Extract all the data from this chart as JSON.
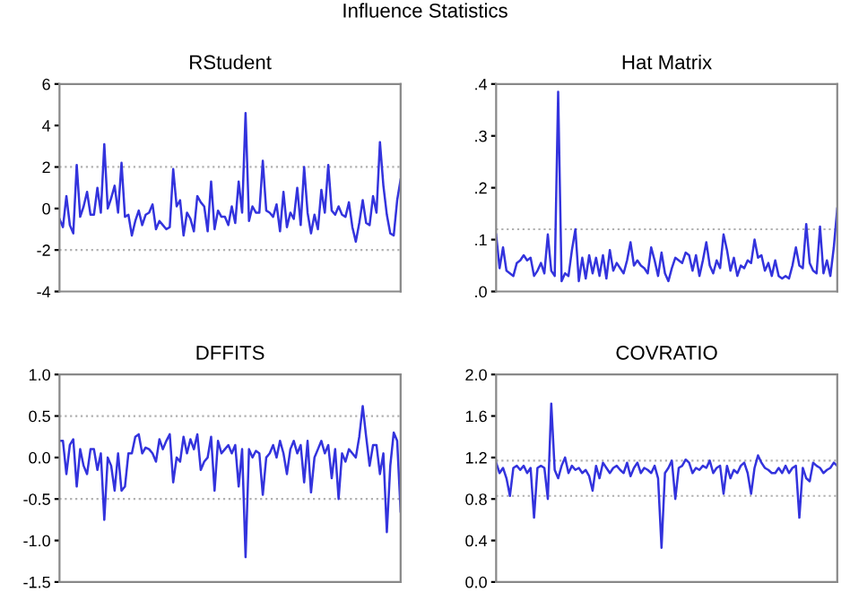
{
  "chart_data": [
    {
      "type": "line",
      "title": "RStudent",
      "annotations": [
        "Influence Statistics"
      ],
      "tick_labels": "y",
      "marker": "none",
      "line_style": "solid",
      "categories": [
        null,
        null,
        null,
        null,
        null,
        null,
        null,
        null,
        null,
        null,
        null,
        null,
        null,
        null,
        null,
        null,
        null,
        null,
        null,
        null,
        null,
        null,
        null,
        null,
        null,
        null,
        null,
        null,
        null,
        null,
        null,
        null,
        null,
        null,
        null,
        null,
        null,
        null,
        null,
        null,
        null,
        null,
        null,
        null,
        null,
        null,
        null,
        null,
        null,
        null,
        null,
        null,
        null,
        null,
        null,
        null,
        null,
        null,
        null,
        null,
        null,
        null,
        null,
        null,
        null,
        null,
        null,
        null,
        null,
        null,
        null,
        null,
        null,
        null,
        null,
        null,
        null,
        null,
        null,
        null,
        null,
        null,
        null,
        null,
        null,
        null,
        null,
        null,
        null,
        null,
        null,
        null,
        null,
        null,
        null,
        null,
        null,
        null,
        null,
        null
      ],
      "series": [
        {
          "color": "#3333dd",
          "values": [
            -0.5,
            -0.9,
            0.6,
            -0.8,
            -1.2,
            2.1,
            -0.4,
            0.1,
            0.8,
            -0.3,
            -0.3,
            1.0,
            -0.2,
            3.1,
            0,
            0.5,
            1.1,
            -0.2,
            2.2,
            -0.4,
            -0.3,
            -1.3,
            -0.6,
            -0.1,
            -0.8,
            -0.3,
            -0.2,
            0.2,
            -1.0,
            -0.6,
            -0.8,
            -1.0,
            -0.9,
            1.9,
            0.1,
            0.4,
            -1.3,
            -0.2,
            -0.5,
            -1.1,
            0.6,
            0.3,
            0.1,
            -1.1,
            1.3,
            -1.0,
            -0.1,
            -0.4,
            -0.4,
            -0.8,
            0.1,
            -0.7,
            1.3,
            -0.2,
            4.6,
            -0.6,
            0.1,
            -0.2,
            -0.2,
            2.3,
            -0.1,
            -0.2,
            -0.4,
            0.2,
            -1.1,
            0.8,
            -0.9,
            -0.2,
            -0.5,
            1.0,
            -0.8,
            2.0,
            -0.2,
            -1.2,
            -0.3,
            -1.0,
            0.9,
            -0.2,
            2.1,
            -0.1,
            -0.3,
            0.1,
            -0.3,
            -0.4,
            0.3,
            -0.9,
            -1.6,
            -0.7,
            0.4,
            -0.7,
            -0.8,
            0.6,
            -0.2,
            3.2,
            1.1,
            -0.3,
            -1.2,
            -1.3,
            0.4,
            1.4
          ]
        }
      ],
      "ylim": [
        -4,
        6
      ],
      "yticks": [
        -4,
        -2,
        0,
        2,
        4,
        6
      ],
      "grid": false,
      "legend": false,
      "ref_lines": [
        {
          "axis": "y",
          "value": 2,
          "color": "#b0b0b0",
          "line_style": "dotted"
        },
        {
          "axis": "y",
          "value": -2,
          "color": "#b0b0b0",
          "line_style": "dotted"
        }
      ]
    },
    {
      "type": "line",
      "title": "Hat Matrix",
      "tick_labels": "y",
      "marker": "none",
      "line_style": "solid",
      "categories": [
        null,
        null,
        null,
        null,
        null,
        null,
        null,
        null,
        null,
        null,
        null,
        null,
        null,
        null,
        null,
        null,
        null,
        null,
        null,
        null,
        null,
        null,
        null,
        null,
        null,
        null,
        null,
        null,
        null,
        null,
        null,
        null,
        null,
        null,
        null,
        null,
        null,
        null,
        null,
        null,
        null,
        null,
        null,
        null,
        null,
        null,
        null,
        null,
        null,
        null,
        null,
        null,
        null,
        null,
        null,
        null,
        null,
        null,
        null,
        null,
        null,
        null,
        null,
        null,
        null,
        null,
        null,
        null,
        null,
        null,
        null,
        null,
        null,
        null,
        null,
        null,
        null,
        null,
        null,
        null,
        null,
        null,
        null,
        null,
        null,
        null,
        null,
        null,
        null,
        null,
        null,
        null,
        null,
        null,
        null,
        null,
        null,
        null,
        null,
        null
      ],
      "series": [
        {
          "color": "#3333dd",
          "values": [
            0.11,
            0.045,
            0.085,
            0.04,
            0.035,
            0.03,
            0.055,
            0.06,
            0.07,
            0.06,
            0.065,
            0.03,
            0.04,
            0.055,
            0.035,
            0.11,
            0.04,
            0.03,
            0.385,
            0.02,
            0.035,
            0.03,
            0.08,
            0.12,
            0.02,
            0.065,
            0.025,
            0.07,
            0.035,
            0.065,
            0.03,
            0.07,
            0.025,
            0.08,
            0.04,
            0.055,
            0.045,
            0.035,
            0.06,
            0.095,
            0.05,
            0.06,
            0.05,
            0.045,
            0.035,
            0.085,
            0.06,
            0.03,
            0.075,
            0.035,
            0.02,
            0.045,
            0.065,
            0.06,
            0.055,
            0.075,
            0.07,
            0.04,
            0.07,
            0.03,
            0.06,
            0.095,
            0.05,
            0.035,
            0.06,
            0.045,
            0.11,
            0.08,
            0.04,
            0.065,
            0.03,
            0.05,
            0.045,
            0.06,
            0.055,
            0.1,
            0.065,
            0.07,
            0.04,
            0.055,
            0.03,
            0.06,
            0.03,
            0.025,
            0.03,
            0.025,
            0.05,
            0.085,
            0.05,
            0.045,
            0.13,
            0.055,
            0.04,
            0.035,
            0.125,
            0.035,
            0.06,
            0.03,
            0.085,
            0.16
          ]
        }
      ],
      "ylim": [
        0,
        0.4
      ],
      "yticks": [
        {
          "value": 0,
          "label": ".0"
        },
        {
          "value": 0.1,
          "label": ".1"
        },
        {
          "value": 0.2,
          "label": ".2"
        },
        {
          "value": 0.3,
          "label": ".3"
        },
        {
          "value": 0.4,
          "label": ".4"
        }
      ],
      "grid": false,
      "legend": false,
      "ref_lines": [
        {
          "axis": "y",
          "value": 0.12,
          "color": "#b0b0b0",
          "line_style": "dotted"
        }
      ]
    },
    {
      "type": "line",
      "title": "DFFITS",
      "tick_labels": "y",
      "marker": "none",
      "line_style": "solid",
      "categories": [
        null,
        null,
        null,
        null,
        null,
        null,
        null,
        null,
        null,
        null,
        null,
        null,
        null,
        null,
        null,
        null,
        null,
        null,
        null,
        null,
        null,
        null,
        null,
        null,
        null,
        null,
        null,
        null,
        null,
        null,
        null,
        null,
        null,
        null,
        null,
        null,
        null,
        null,
        null,
        null,
        null,
        null,
        null,
        null,
        null,
        null,
        null,
        null,
        null,
        null,
        null,
        null,
        null,
        null,
        null,
        null,
        null,
        null,
        null,
        null,
        null,
        null,
        null,
        null,
        null,
        null,
        null,
        null,
        null,
        null,
        null,
        null,
        null,
        null,
        null,
        null,
        null,
        null,
        null,
        null,
        null,
        null,
        null,
        null,
        null,
        null,
        null,
        null,
        null,
        null,
        null,
        null,
        null,
        null,
        null,
        null,
        null,
        null,
        null,
        null
      ],
      "series": [
        {
          "color": "#3333dd",
          "values": [
            0.2,
            0.2,
            -0.2,
            0.15,
            0.22,
            -0.35,
            0.1,
            -0.1,
            -0.2,
            0.1,
            0.1,
            -0.15,
            0.05,
            -0.75,
            0.0,
            -0.1,
            -0.4,
            0.05,
            -0.4,
            -0.35,
            0.05,
            0.05,
            0.25,
            0.28,
            0.05,
            0.12,
            0.1,
            0.05,
            -0.05,
            0.22,
            0.1,
            0.2,
            0.28,
            -0.3,
            0.0,
            -0.05,
            0.25,
            0.05,
            0.22,
            0.1,
            0.28,
            -0.15,
            -0.05,
            0.0,
            0.25,
            -0.4,
            0.2,
            0.05,
            0.1,
            0.15,
            0.05,
            0.15,
            -0.35,
            0.1,
            -1.2,
            0.1,
            0.0,
            0.08,
            0.05,
            -0.45,
            0.0,
            0.05,
            0.15,
            0.0,
            0.2,
            0.05,
            -0.2,
            0.1,
            0.2,
            0.05,
            0.15,
            -0.3,
            0.2,
            -0.42,
            0.0,
            0.1,
            0.2,
            0.05,
            0.15,
            -0.25,
            0.1,
            -0.5,
            0.05,
            -0.05,
            0.1,
            0.05,
            0.0,
            0.25,
            0.62,
            0.25,
            -0.1,
            0.15,
            0.15,
            -0.2,
            0.05,
            -0.9,
            -0.1,
            0.3,
            0.2,
            -0.65
          ]
        }
      ],
      "ylim": [
        -1.5,
        1.0
      ],
      "yticks": [
        {
          "value": -1.5,
          "label": "-1.5"
        },
        {
          "value": -1.0,
          "label": "-1.0"
        },
        {
          "value": -0.5,
          "label": "-0.5"
        },
        {
          "value": 0,
          "label": "0.0"
        },
        {
          "value": 0.5,
          "label": "0.5"
        },
        {
          "value": 1.0,
          "label": "1.0"
        }
      ],
      "grid": false,
      "legend": false,
      "ref_lines": [
        {
          "axis": "y",
          "value": 0.5,
          "color": "#b0b0b0",
          "line_style": "dotted"
        },
        {
          "axis": "y",
          "value": -0.5,
          "color": "#b0b0b0",
          "line_style": "dotted"
        }
      ]
    },
    {
      "type": "line",
      "title": "COVRATIO",
      "tick_labels": "y",
      "marker": "none",
      "line_style": "solid",
      "categories": [
        null,
        null,
        null,
        null,
        null,
        null,
        null,
        null,
        null,
        null,
        null,
        null,
        null,
        null,
        null,
        null,
        null,
        null,
        null,
        null,
        null,
        null,
        null,
        null,
        null,
        null,
        null,
        null,
        null,
        null,
        null,
        null,
        null,
        null,
        null,
        null,
        null,
        null,
        null,
        null,
        null,
        null,
        null,
        null,
        null,
        null,
        null,
        null,
        null,
        null,
        null,
        null,
        null,
        null,
        null,
        null,
        null,
        null,
        null,
        null,
        null,
        null,
        null,
        null,
        null,
        null,
        null,
        null,
        null,
        null,
        null,
        null,
        null,
        null,
        null,
        null,
        null,
        null,
        null,
        null,
        null,
        null,
        null,
        null,
        null,
        null,
        null,
        null,
        null,
        null,
        null,
        null,
        null,
        null,
        null,
        null,
        null,
        null,
        null,
        null
      ],
      "series": [
        {
          "color": "#3333dd",
          "values": [
            1.15,
            1.05,
            1.1,
            1.0,
            0.83,
            1.1,
            1.12,
            1.08,
            1.12,
            1.05,
            1.1,
            0.62,
            1.1,
            1.12,
            1.1,
            0.8,
            1.72,
            1.08,
            1.0,
            1.12,
            1.2,
            1.05,
            1.12,
            1.08,
            1.1,
            1.05,
            1.08,
            1.02,
            0.88,
            1.12,
            1.0,
            1.15,
            1.1,
            1.05,
            1.1,
            1.12,
            1.08,
            1.05,
            1.15,
            1.02,
            1.1,
            1.15,
            1.05,
            1.1,
            1.08,
            1.05,
            1.12,
            1.0,
            0.33,
            1.05,
            1.1,
            1.17,
            0.8,
            1.1,
            1.12,
            1.18,
            1.15,
            1.05,
            1.1,
            1.08,
            1.12,
            1.1,
            1.17,
            1.05,
            1.1,
            1.12,
            0.85,
            1.12,
            1.0,
            1.08,
            1.05,
            1.12,
            1.15,
            1.05,
            0.85,
            1.1,
            1.22,
            1.15,
            1.1,
            1.08,
            1.05,
            1.05,
            1.1,
            1.05,
            1.12,
            1.05,
            1.1,
            1.12,
            0.62,
            1.1,
            1.0,
            0.97,
            1.15,
            1.12,
            1.1,
            1.05,
            1.08,
            1.1,
            1.15,
            1.12
          ]
        }
      ],
      "ylim": [
        0,
        2.0
      ],
      "yticks": [
        {
          "value": 0,
          "label": "0.0"
        },
        {
          "value": 0.4,
          "label": "0.4"
        },
        {
          "value": 0.8,
          "label": "0.8"
        },
        {
          "value": 1.2,
          "label": "1.2"
        },
        {
          "value": 1.6,
          "label": "1.6"
        },
        {
          "value": 2.0,
          "label": "2.0"
        }
      ],
      "grid": false,
      "legend": false,
      "ref_lines": [
        {
          "axis": "y",
          "value": 1.17,
          "color": "#b0b0b0",
          "line_style": "dotted"
        },
        {
          "axis": "y",
          "value": 0.83,
          "color": "#b0b0b0",
          "line_style": "dotted"
        }
      ]
    }
  ]
}
